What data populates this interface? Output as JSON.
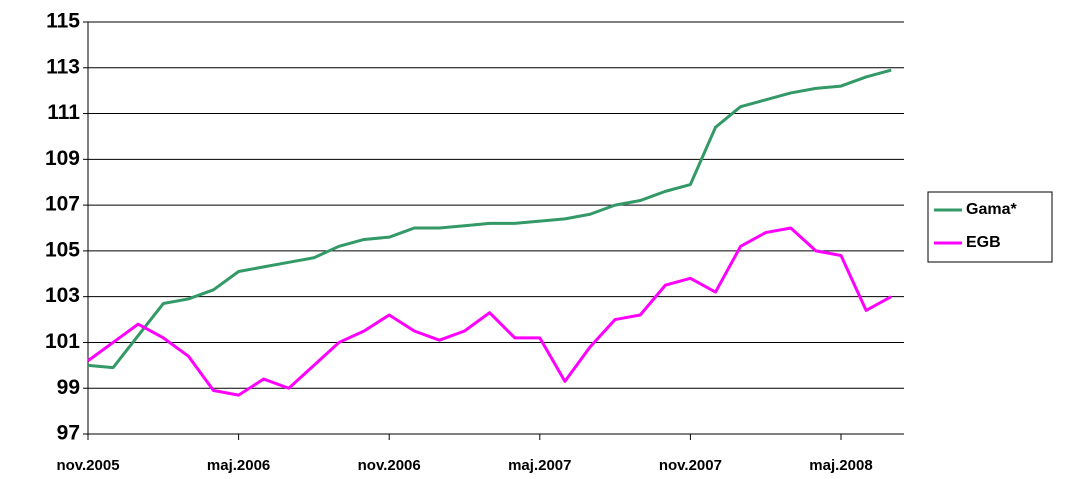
{
  "chart_data": {
    "type": "line",
    "categories": [
      "nov.2005",
      null,
      null,
      null,
      null,
      null,
      "maj.2006",
      null,
      null,
      null,
      null,
      null,
      "nov.2006",
      null,
      null,
      null,
      null,
      null,
      "maj.2007",
      null,
      null,
      null,
      null,
      null,
      "nov.2007",
      null,
      null,
      null,
      null,
      null,
      "maj.2008",
      null,
      null
    ],
    "series": [
      {
        "name": "Gama*",
        "color": "#339966",
        "values": [
          100,
          99.9,
          101.3,
          102.7,
          102.9,
          103.3,
          104.1,
          104.3,
          104.5,
          104.7,
          105.2,
          105.5,
          105.6,
          106.0,
          106.0,
          106.1,
          106.2,
          106.2,
          106.3,
          106.4,
          106.6,
          107.0,
          107.2,
          107.6,
          107.9,
          110.4,
          111.3,
          111.6,
          111.9,
          112.1,
          112.2,
          112.6,
          112.9
        ]
      },
      {
        "name": "EGB",
        "color": "#ff00ff",
        "values": [
          100.2,
          101.0,
          101.8,
          101.2,
          100.4,
          98.9,
          98.7,
          99.4,
          99.0,
          100.0,
          101.0,
          101.5,
          102.2,
          101.5,
          101.1,
          101.5,
          102.3,
          101.2,
          101.2,
          99.3,
          100.8,
          102.0,
          102.2,
          103.5,
          103.8,
          103.2,
          105.2,
          105.8,
          106.0,
          105.0,
          104.8,
          102.4,
          103.0
        ]
      }
    ],
    "ylim": [
      97,
      115
    ],
    "yticks": [
      97,
      99,
      101,
      103,
      105,
      107,
      109,
      111,
      113,
      115
    ],
    "grid": true,
    "legend": "right"
  }
}
